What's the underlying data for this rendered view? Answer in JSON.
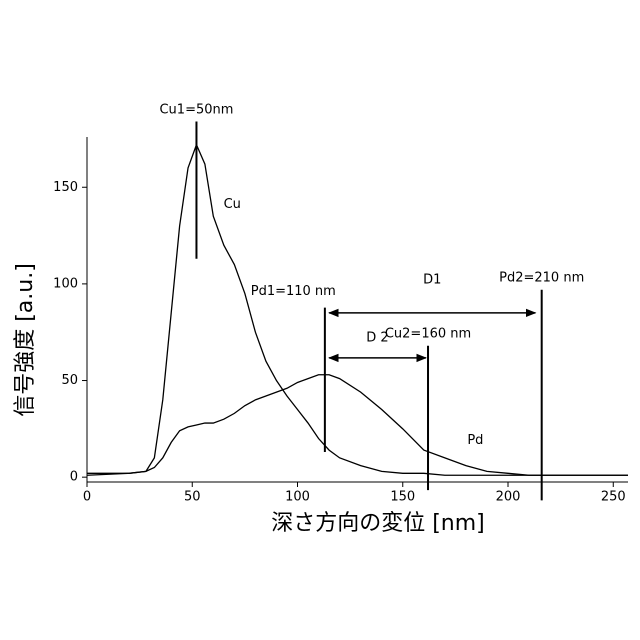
{
  "chart_data": {
    "type": "line",
    "x_label": "深さ方向の変位 [nm]",
    "y_label": "信号強度 [a.u.]",
    "x": [
      0,
      20,
      28,
      32,
      36,
      40,
      44,
      48,
      52,
      56,
      60,
      65,
      70,
      75,
      80,
      85,
      90,
      95,
      100,
      105,
      110,
      115,
      120,
      130,
      140,
      150,
      160,
      170,
      180,
      190,
      200,
      210,
      230,
      257
    ],
    "series": [
      {
        "name": "Cu",
        "color": "#000000",
        "label_at": [
          69,
          141
        ],
        "values": [
          2,
          2,
          3,
          10,
          40,
          85,
          130,
          160,
          172,
          162,
          135,
          120,
          110,
          95,
          75,
          60,
          50,
          42,
          35,
          28,
          20,
          14,
          10,
          6,
          3,
          2,
          2,
          1,
          1,
          1,
          1,
          1,
          1,
          1
        ]
      },
      {
        "name": "Pd",
        "color": "#000000",
        "label_at": [
          184.5,
          19
        ],
        "values": [
          1,
          2,
          3,
          5,
          10,
          18,
          24,
          26,
          27,
          28,
          28,
          30,
          33,
          37,
          40,
          42,
          44,
          46,
          49,
          51,
          53,
          53,
          51,
          44,
          35,
          25,
          14,
          10,
          6,
          3,
          2,
          1,
          1,
          1
        ]
      }
    ],
    "xlim": [
      0,
      257
    ],
    "ylim": [
      -2.5,
      176
    ],
    "xticks": [
      0,
      50,
      100,
      150,
      200,
      250
    ],
    "yticks": [
      0,
      50,
      100,
      150
    ],
    "markers": [
      {
        "label": "Cu1=50nm",
        "x": 52,
        "y": [
          113,
          184
        ],
        "label_at": [
          52,
          190
        ]
      },
      {
        "label": "Pd1=110 nm",
        "x": 113,
        "y": [
          13,
          87.7
        ],
        "label_at": [
          98,
          96
        ]
      },
      {
        "label": "Cu2=160 nm",
        "x": 162,
        "y": [
          -6.7,
          68
        ],
        "label_at": [
          162,
          74
        ]
      },
      {
        "label": "Pd2=210 nm",
        "x": 216,
        "y": [
          -12,
          97
        ],
        "label_at": [
          216,
          103
        ]
      }
    ],
    "arrows": [
      {
        "label": "D1",
        "x": [
          115,
          213
        ],
        "y": 85,
        "label_at": [
          164,
          102
        ]
      },
      {
        "label": "D 2",
        "x": [
          115,
          161
        ],
        "y": 61.7,
        "label_at": [
          138,
          72
        ]
      }
    ]
  }
}
